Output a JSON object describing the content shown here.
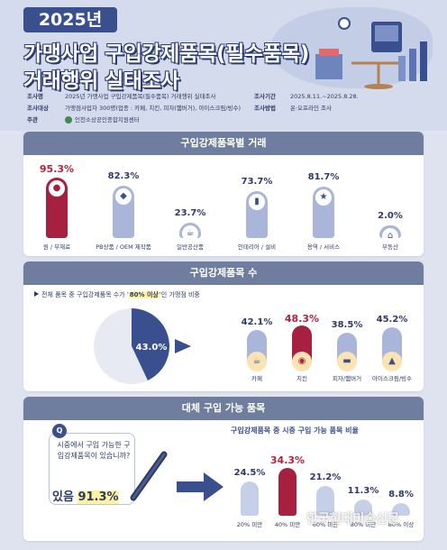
{
  "header": {
    "year_badge": "2025년",
    "title_line1": "가맹사업 구입강제품목(필수품목)",
    "title_line2": "거래행위 실태조사",
    "info": {
      "name_key": "조사명",
      "name_val": "2025년 가맹사업 구입강제품목(필수품목) 거래행위 실태조사",
      "target_key": "조사대상",
      "target_val": "가맹점사업자 300명(업종 : 카페, 치킨, 피자(햄버거), 아이스크림/빙수)",
      "host_key": "주관",
      "host_val": "인천소상공인종합지원센터",
      "period_key": "조사기간",
      "period_val": "2025.8.11.~2025.8.28.",
      "method_key": "조사방법",
      "method_val": "온·오프라인 조사"
    }
  },
  "colors": {
    "navy": "#3a4f8e",
    "crimson": "#a8203f",
    "periwinkle": "#a9b6da",
    "light_bar": "#c6cfe8",
    "section_head": "#6f7d9e"
  },
  "section1": {
    "heading": "구입강제품목별 거래"
  },
  "section2": {
    "heading": "구입강제품목 수",
    "sub_pre": "전체 품목 중 구입강제품목 수가 '",
    "sub_em": "80% 이상",
    "sub_post": "'인 가맹점 비중"
  },
  "section3": {
    "heading": "대체 구입 가능 품목",
    "q_badge": "Q",
    "question": "시중에서 구입 가능한 구입강제품목이 있습니까?",
    "answer_pre": "있음 ",
    "answer_val": "91.3%",
    "sub": "구입강제품목 중 시중 구입 가능 품목 비율"
  },
  "watermark": "한국현대미술신문",
  "chart_data": [
    {
      "type": "bar",
      "title": "구입강제품목별 거래",
      "categories": [
        "원 / 부재료",
        "PB상품 / OEM 제작품",
        "일반공산품",
        "인테리어 / 설비",
        "용역 / 서비스",
        "부동산"
      ],
      "values": [
        95.3,
        82.3,
        23.7,
        73.7,
        81.7,
        2.0
      ],
      "value_labels": [
        "95.3%",
        "82.3%",
        "23.7%",
        "73.7%",
        "81.7%",
        "2.0%"
      ],
      "highlight_index": 0,
      "ylim": [
        0,
        100
      ],
      "icons": [
        "coffee-beans-icon",
        "tag-icon",
        "cup-icon",
        "paint-roller-icon",
        "stars-icon",
        "house-icon"
      ]
    },
    {
      "type": "pie",
      "title": "구입강제품목 수",
      "slices": [
        {
          "value": 43.0
        },
        {
          "value": 57.0
        }
      ],
      "value_label": "43.0%"
    },
    {
      "type": "bar",
      "title": "구입강제품목 수",
      "categories": [
        "카페",
        "치킨",
        "피자/햄버거",
        "아이스크림/빙수"
      ],
      "values": [
        42.1,
        48.3,
        38.5,
        45.2
      ],
      "value_labels": [
        "42.1%",
        "48.3%",
        "38.5%",
        "45.2%"
      ],
      "highlight_index": 1,
      "ylim": [
        0,
        100
      ]
    },
    {
      "type": "bar",
      "title": "구입강제품목 중 시중 구입 가능 품목 비율",
      "categories": [
        "20% 미만",
        "40% 미만",
        "60% 미만",
        "80% 미만",
        "80% 이상"
      ],
      "values": [
        24.5,
        34.3,
        21.2,
        11.3,
        8.8
      ],
      "value_labels": [
        "24.5%",
        "34.3%",
        "21.2%",
        "11.3%",
        "8.8%"
      ],
      "highlight_index": 1,
      "ylim": [
        0,
        40
      ]
    }
  ]
}
